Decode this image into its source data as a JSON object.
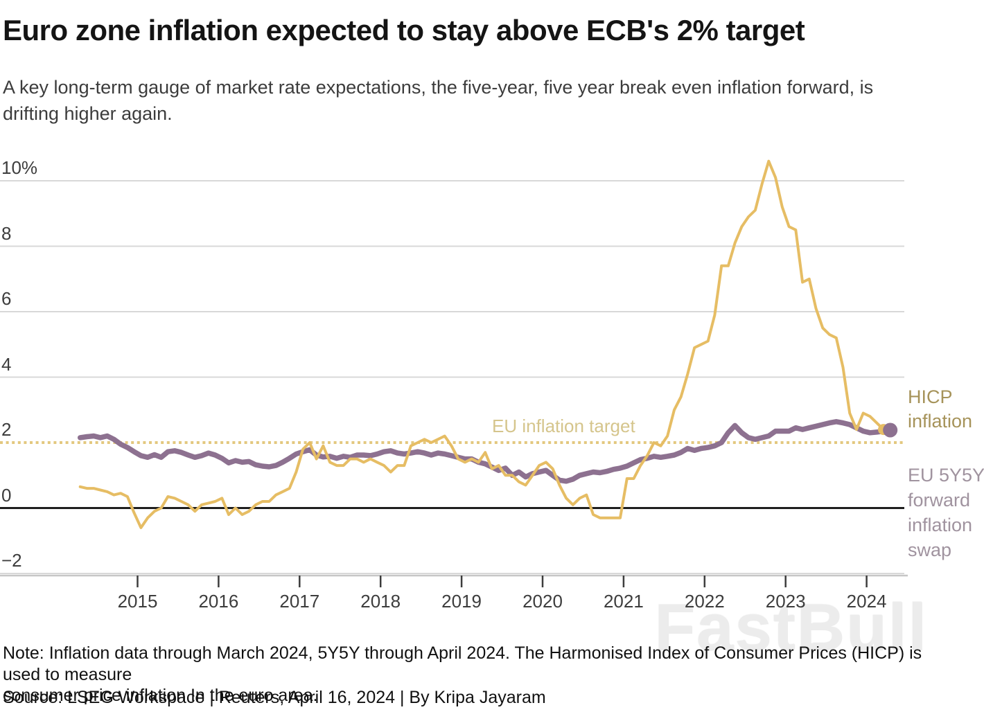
{
  "header": {
    "title": "Euro zone inflation expected to stay above ECB's 2% target",
    "subtitle_lines": [
      "A key long-term gauge of market rate expectations, the five-year, five year break even inflation forward, is",
      "drifting higher again."
    ]
  },
  "chart_data": {
    "type": "line",
    "unit": "%",
    "grid": true,
    "legend_position": "right",
    "colors": {
      "gridline": "#d8d8d8",
      "zero_line": "#1f1f1f",
      "axis_line": "#c6c6c6",
      "tick": "#3d3d3d",
      "axis_text": "#3d3d3d"
    },
    "x_axis": {
      "tick_years": [
        2015,
        2016,
        2017,
        2018,
        2019,
        2020,
        2021,
        2022,
        2023,
        2024
      ]
    },
    "y_axis": {
      "range": [
        -2.6,
        11
      ],
      "ticks": [
        {
          "label": "10%",
          "value": 10
        },
        {
          "label": "8",
          "value": 8
        },
        {
          "label": "6",
          "value": 6
        },
        {
          "label": "4",
          "value": 4
        },
        {
          "label": "2",
          "value": 2
        },
        {
          "label": "0",
          "value": 0
        },
        {
          "label": "−2",
          "value": -2
        }
      ]
    },
    "target_line": {
      "label": "EU inflation target",
      "value": 2,
      "color": "#e3c87f",
      "label_color": "#d5c58c"
    },
    "series": [
      {
        "id": "hicp",
        "name": "HICP inflation",
        "color": "#e6bd64",
        "line_width": 4,
        "end_dot_radius": 8,
        "start": "2014-04",
        "end": "2024-03",
        "values": [
          0.65,
          0.6,
          0.6,
          0.55,
          0.5,
          0.4,
          0.45,
          0.35,
          -0.15,
          -0.6,
          -0.3,
          -0.1,
          0.0,
          0.35,
          0.3,
          0.2,
          0.1,
          -0.1,
          0.1,
          0.15,
          0.2,
          0.3,
          -0.2,
          0.0,
          -0.2,
          -0.1,
          0.1,
          0.2,
          0.2,
          0.4,
          0.5,
          0.6,
          1.1,
          1.8,
          2.0,
          1.5,
          1.9,
          1.4,
          1.3,
          1.3,
          1.5,
          1.5,
          1.4,
          1.5,
          1.4,
          1.3,
          1.1,
          1.3,
          1.3,
          1.9,
          2.0,
          2.1,
          2.0,
          2.1,
          2.2,
          1.9,
          1.5,
          1.4,
          1.5,
          1.4,
          1.7,
          1.2,
          1.3,
          1.0,
          1.0,
          0.8,
          0.7,
          1.0,
          1.3,
          1.4,
          1.2,
          0.7,
          0.3,
          0.1,
          0.3,
          0.4,
          -0.2,
          -0.3,
          -0.3,
          -0.3,
          -0.3,
          0.9,
          0.9,
          1.3,
          1.6,
          2.0,
          1.9,
          2.2,
          3.0,
          3.4,
          4.1,
          4.9,
          5.0,
          5.1,
          5.9,
          7.4,
          7.4,
          8.1,
          8.6,
          8.9,
          9.1,
          9.9,
          10.6,
          10.1,
          9.2,
          8.6,
          8.5,
          6.9,
          7.0,
          6.1,
          5.5,
          5.3,
          5.2,
          4.3,
          2.9,
          2.4,
          2.9,
          2.8,
          2.6,
          2.4
        ]
      },
      {
        "id": "swap",
        "name": "EU 5Y5Y forward inflation swap",
        "color": "#8d7190",
        "line_width": 7.5,
        "end_dot_radius": 10.5,
        "start": "2014-04",
        "end": "2024-04",
        "values": [
          2.15,
          2.18,
          2.2,
          2.15,
          2.2,
          2.1,
          1.95,
          1.85,
          1.72,
          1.6,
          1.55,
          1.63,
          1.55,
          1.72,
          1.75,
          1.7,
          1.62,
          1.55,
          1.6,
          1.68,
          1.62,
          1.52,
          1.38,
          1.45,
          1.4,
          1.42,
          1.32,
          1.28,
          1.26,
          1.3,
          1.4,
          1.52,
          1.65,
          1.72,
          1.78,
          1.62,
          1.56,
          1.58,
          1.52,
          1.58,
          1.55,
          1.62,
          1.62,
          1.6,
          1.65,
          1.72,
          1.75,
          1.68,
          1.65,
          1.68,
          1.72,
          1.68,
          1.62,
          1.68,
          1.65,
          1.6,
          1.55,
          1.5,
          1.5,
          1.4,
          1.35,
          1.25,
          1.15,
          1.22,
          1.0,
          1.1,
          0.95,
          1.05,
          1.1,
          1.15,
          1.0,
          0.85,
          0.82,
          0.88,
          1.0,
          1.05,
          1.1,
          1.08,
          1.12,
          1.18,
          1.22,
          1.28,
          1.38,
          1.48,
          1.52,
          1.58,
          1.55,
          1.58,
          1.62,
          1.7,
          1.82,
          1.76,
          1.82,
          1.85,
          1.9,
          2.0,
          2.3,
          2.52,
          2.3,
          2.15,
          2.1,
          2.15,
          2.2,
          2.35,
          2.35,
          2.35,
          2.45,
          2.4,
          2.45,
          2.5,
          2.55,
          2.6,
          2.64,
          2.6,
          2.55,
          2.45,
          2.35,
          2.3,
          2.32,
          2.35,
          2.38
        ]
      }
    ]
  },
  "footer": {
    "note_lines": [
      "Note: Inflation data through March 2024, 5Y5Y through April 2024. The Harmonised Index of Consumer Prices (HICP) is used to measure",
      "consumer price inflation In the euro area."
    ],
    "source": "Source: LSEG Workspace | Reuters, April 16, 2024 | By Kripa Jayaram"
  },
  "watermark": "FastBull"
}
